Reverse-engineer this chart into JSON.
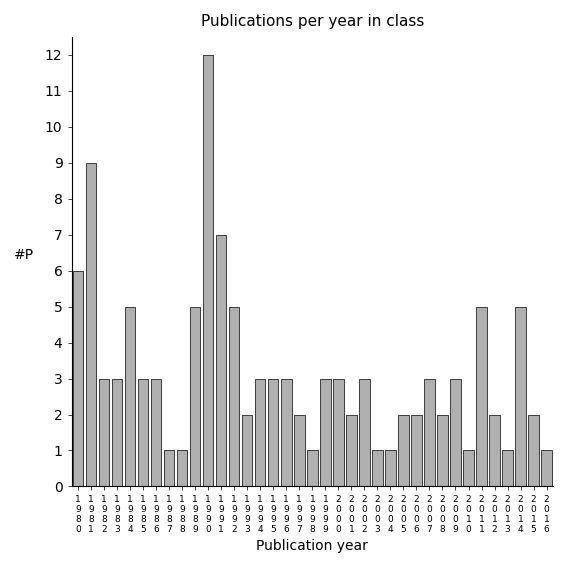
{
  "all_years": [
    1980,
    1981,
    1982,
    1983,
    1984,
    1985,
    1986,
    1987,
    1988,
    1989,
    1990,
    1991,
    1992,
    1993,
    1994,
    1995,
    1996,
    1997,
    1998,
    1999,
    2000,
    2001,
    2002,
    2003,
    2004,
    2005,
    2006,
    2007,
    2008,
    2009,
    2010,
    2011,
    2012,
    2013,
    2014,
    2015,
    2016
  ],
  "all_values": [
    6,
    9,
    3,
    3,
    5,
    3,
    3,
    1,
    1,
    5,
    12,
    7,
    5,
    2,
    3,
    3,
    3,
    2,
    1,
    3,
    3,
    2,
    3,
    1,
    1,
    2,
    2,
    3,
    2,
    3,
    1,
    5,
    2,
    1,
    5,
    2,
    1
  ],
  "title": "Publications per year in class",
  "xlabel": "Publication year",
  "ylabel": "#P",
  "bar_color": "#b0b0b0",
  "bar_edge_color": "#000000",
  "ylim": [
    0,
    12.5
  ],
  "yticks": [
    0,
    1,
    2,
    3,
    4,
    5,
    6,
    7,
    8,
    9,
    10,
    11,
    12
  ],
  "bg_color": "#ffffff"
}
